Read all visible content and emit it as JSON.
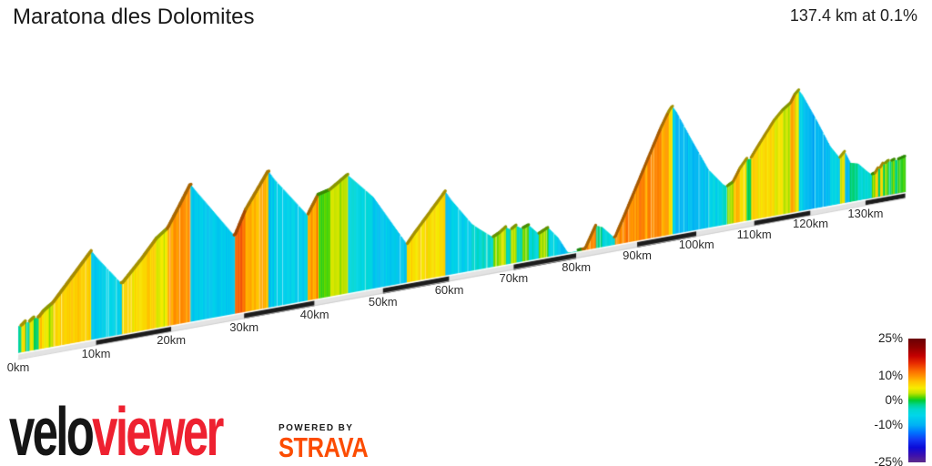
{
  "header": {
    "title": "Maratona dles Dolomites",
    "summary": "137.4 km at 0.1%"
  },
  "footer": {
    "velo": "velo",
    "viewer": "viewer",
    "viewer_color": "#ee2130",
    "powered_by": "POWERED BY",
    "strava": "STRAVA",
    "strava_color": "#fc4c02"
  },
  "axis": {
    "unit": "km",
    "ticks_km": [
      0,
      10,
      20,
      30,
      40,
      50,
      60,
      70,
      80,
      90,
      100,
      110,
      120,
      130
    ],
    "labels": [
      "0km",
      "10km",
      "20km",
      "30km",
      "40km",
      "50km",
      "60km",
      "70km",
      "80km",
      "90km",
      "100km",
      "110km",
      "120km",
      "130km"
    ]
  },
  "legend": {
    "labels": [
      "25%",
      "10%",
      "0%",
      "-10%",
      "-25%"
    ],
    "values_pct": [
      25,
      10,
      0,
      -10,
      -25
    ],
    "max_pct": 25,
    "min_pct": -25,
    "stops": [
      [
        0.0,
        "#690005"
      ],
      [
        0.07,
        "#8f0000"
      ],
      [
        0.14,
        "#c40000"
      ],
      [
        0.2,
        "#e82c00"
      ],
      [
        0.26,
        "#fb6a00"
      ],
      [
        0.3,
        "#ff9000"
      ],
      [
        0.35,
        "#ffc400"
      ],
      [
        0.4,
        "#f7ec00"
      ],
      [
        0.44,
        "#c3e400"
      ],
      [
        0.475,
        "#55d500"
      ],
      [
        0.5,
        "#00cc33"
      ],
      [
        0.535,
        "#00d490"
      ],
      [
        0.57,
        "#00d8cc"
      ],
      [
        0.62,
        "#00d6ea"
      ],
      [
        0.7,
        "#00b0f5"
      ],
      [
        0.76,
        "#0072ff"
      ],
      [
        0.82,
        "#1236f2"
      ],
      [
        0.88,
        "#0b0bd8"
      ],
      [
        0.94,
        "#3a0fb0"
      ],
      [
        1.0,
        "#5d2b8b"
      ]
    ]
  },
  "chart_data": {
    "type": "area",
    "title": "Maratona dles Dolomites",
    "total_distance_km": 137.4,
    "avg_gradient_pct": 0.1,
    "x_unit": "km",
    "y_unit": "m",
    "x_ticks_km": [
      0,
      10,
      20,
      30,
      40,
      50,
      60,
      70,
      80,
      90,
      100,
      110,
      120,
      130
    ],
    "ruler_colors": {
      "even_segment": "#e3e3e3",
      "odd_segment": "#1c1c1c",
      "top_edge": "#ffffff"
    },
    "profile_km_elevation_m": [
      [
        0,
        1433
      ],
      [
        0.4,
        1425
      ],
      [
        0.9,
        1452
      ],
      [
        1.4,
        1444
      ],
      [
        2.0,
        1470
      ],
      [
        2.6,
        1464
      ],
      [
        3.2,
        1502
      ],
      [
        3.8,
        1526
      ],
      [
        4.4,
        1548
      ],
      [
        9.4,
        1875
      ],
      [
        10.2,
        1815
      ],
      [
        13.4,
        1602
      ],
      [
        16,
        1755
      ],
      [
        18,
        1885
      ],
      [
        19.5,
        1945
      ],
      [
        21,
        2085
      ],
      [
        22.6,
        2239
      ],
      [
        23.4,
        2180
      ],
      [
        28.7,
        1808
      ],
      [
        30.2,
        1985
      ],
      [
        33.4,
        2244
      ],
      [
        34.2,
        2180
      ],
      [
        39.0,
        1871
      ],
      [
        39.8,
        1945
      ],
      [
        40.5,
        2008
      ],
      [
        42.2,
        2030
      ],
      [
        44.8,
        2121
      ],
      [
        45.6,
        2080
      ],
      [
        48.5,
        1930
      ],
      [
        53.6,
        1528
      ],
      [
        54.6,
        1592
      ],
      [
        59.4,
        1875
      ],
      [
        60.2,
        1812
      ],
      [
        63.4,
        1602
      ],
      [
        64.4,
        1560
      ],
      [
        66.8,
        1468
      ],
      [
        67.8,
        1492
      ],
      [
        68.8,
        1528
      ],
      [
        69.6,
        1502
      ],
      [
        70.4,
        1526
      ],
      [
        71.4,
        1495
      ],
      [
        72.4,
        1512
      ],
      [
        74.0,
        1432
      ],
      [
        75.5,
        1466
      ],
      [
        77.0,
        1382
      ],
      [
        78.5,
        1260
      ],
      [
        80.2,
        1205
      ],
      [
        81.0,
        1210
      ],
      [
        83.2,
        1420
      ],
      [
        84.2,
        1400
      ],
      [
        86.3,
        1295
      ],
      [
        88.0,
        1465
      ],
      [
        90.0,
        1672
      ],
      [
        92.0,
        1880
      ],
      [
        94.0,
        2085
      ],
      [
        95.3,
        2200
      ],
      [
        95.9,
        2236
      ],
      [
        96.5,
        2195
      ],
      [
        99.0,
        1965
      ],
      [
        102.0,
        1700
      ],
      [
        104.5,
        1565
      ],
      [
        105.3,
        1538
      ],
      [
        106.3,
        1562
      ],
      [
        107.5,
        1660
      ],
      [
        108.7,
        1728
      ],
      [
        109.4,
        1725
      ],
      [
        110.6,
        1805
      ],
      [
        112.0,
        1895
      ],
      [
        113.5,
        1990
      ],
      [
        115.0,
        2060
      ],
      [
        116.4,
        2105
      ],
      [
        117.2,
        2170
      ],
      [
        117.9,
        2198
      ],
      [
        118.5,
        2160
      ],
      [
        121.0,
        1945
      ],
      [
        123.5,
        1715
      ],
      [
        125.3,
        1605
      ],
      [
        126.2,
        1648
      ],
      [
        127.2,
        1555
      ],
      [
        128.6,
        1537
      ],
      [
        130.2,
        1465
      ],
      [
        131.2,
        1425
      ],
      [
        131.8,
        1432
      ],
      [
        132.3,
        1468
      ],
      [
        132.7,
        1464
      ],
      [
        133.2,
        1498
      ],
      [
        133.6,
        1494
      ],
      [
        134.2,
        1512
      ],
      [
        134.8,
        1506
      ],
      [
        135.4,
        1514
      ],
      [
        136.0,
        1507
      ],
      [
        136.6,
        1514
      ],
      [
        137.4,
        1522
      ]
    ]
  }
}
